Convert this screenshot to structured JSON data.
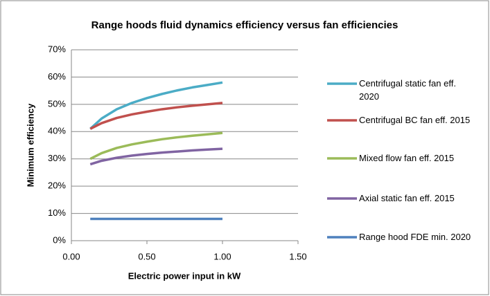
{
  "chart_data": {
    "type": "line",
    "title": "Range hoods fluid dynamics efficiency versus fan efficiencies",
    "x_label": "Electric power input in kW",
    "y_label": "Minimum efficiency",
    "x": [
      0.125,
      0.2,
      0.3,
      0.4,
      0.5,
      0.6,
      0.7,
      0.8,
      0.9,
      1.0
    ],
    "series": [
      {
        "name": "Centrifugal static fan eff. 2020",
        "color": "#4bacc6",
        "values": [
          41,
          44.8,
          48.2,
          50.5,
          52.3,
          53.8,
          55.1,
          56.2,
          57.1,
          58
        ]
      },
      {
        "name": "Centrifugal BC fan eff. 2015",
        "color": "#c0504d",
        "values": [
          41,
          43.1,
          45.0,
          46.3,
          47.3,
          48.2,
          48.9,
          49.5,
          50.0,
          50.5
        ]
      },
      {
        "name": "Mixed flow fan eff. 2015",
        "color": "#9bbb59",
        "values": [
          30,
          32.1,
          34.0,
          35.3,
          36.3,
          37.2,
          37.9,
          38.5,
          39.0,
          39.5
        ]
      },
      {
        "name": "Axial static fan eff. 2015",
        "color": "#8064a2",
        "values": [
          28,
          29.3,
          30.4,
          31.2,
          31.8,
          32.3,
          32.7,
          33.1,
          33.4,
          33.7
        ]
      },
      {
        "name": "Range hood FDE min. 2020",
        "color": "#4f81bd",
        "values": [
          8,
          8,
          8,
          8,
          8,
          8,
          8,
          8,
          8,
          8
        ]
      }
    ],
    "xlim": [
      0,
      1.5
    ],
    "xticks": [
      {
        "value": 0,
        "label": "0.00"
      },
      {
        "value": 0.5,
        "label": "0.50"
      },
      {
        "value": 1,
        "label": "1.00"
      },
      {
        "value": 1.5,
        "label": "1.50"
      }
    ],
    "ylim": [
      0,
      70
    ],
    "yticks": [
      {
        "value": 0,
        "label": "0%"
      },
      {
        "value": 10,
        "label": "10%"
      },
      {
        "value": 20,
        "label": "20%"
      },
      {
        "value": 30,
        "label": "30%"
      },
      {
        "value": 40,
        "label": "40%"
      },
      {
        "value": 50,
        "label": "50%"
      },
      {
        "value": 60,
        "label": "60%"
      },
      {
        "value": 70,
        "label": "70%"
      }
    ],
    "grid": true,
    "legend": "right"
  }
}
